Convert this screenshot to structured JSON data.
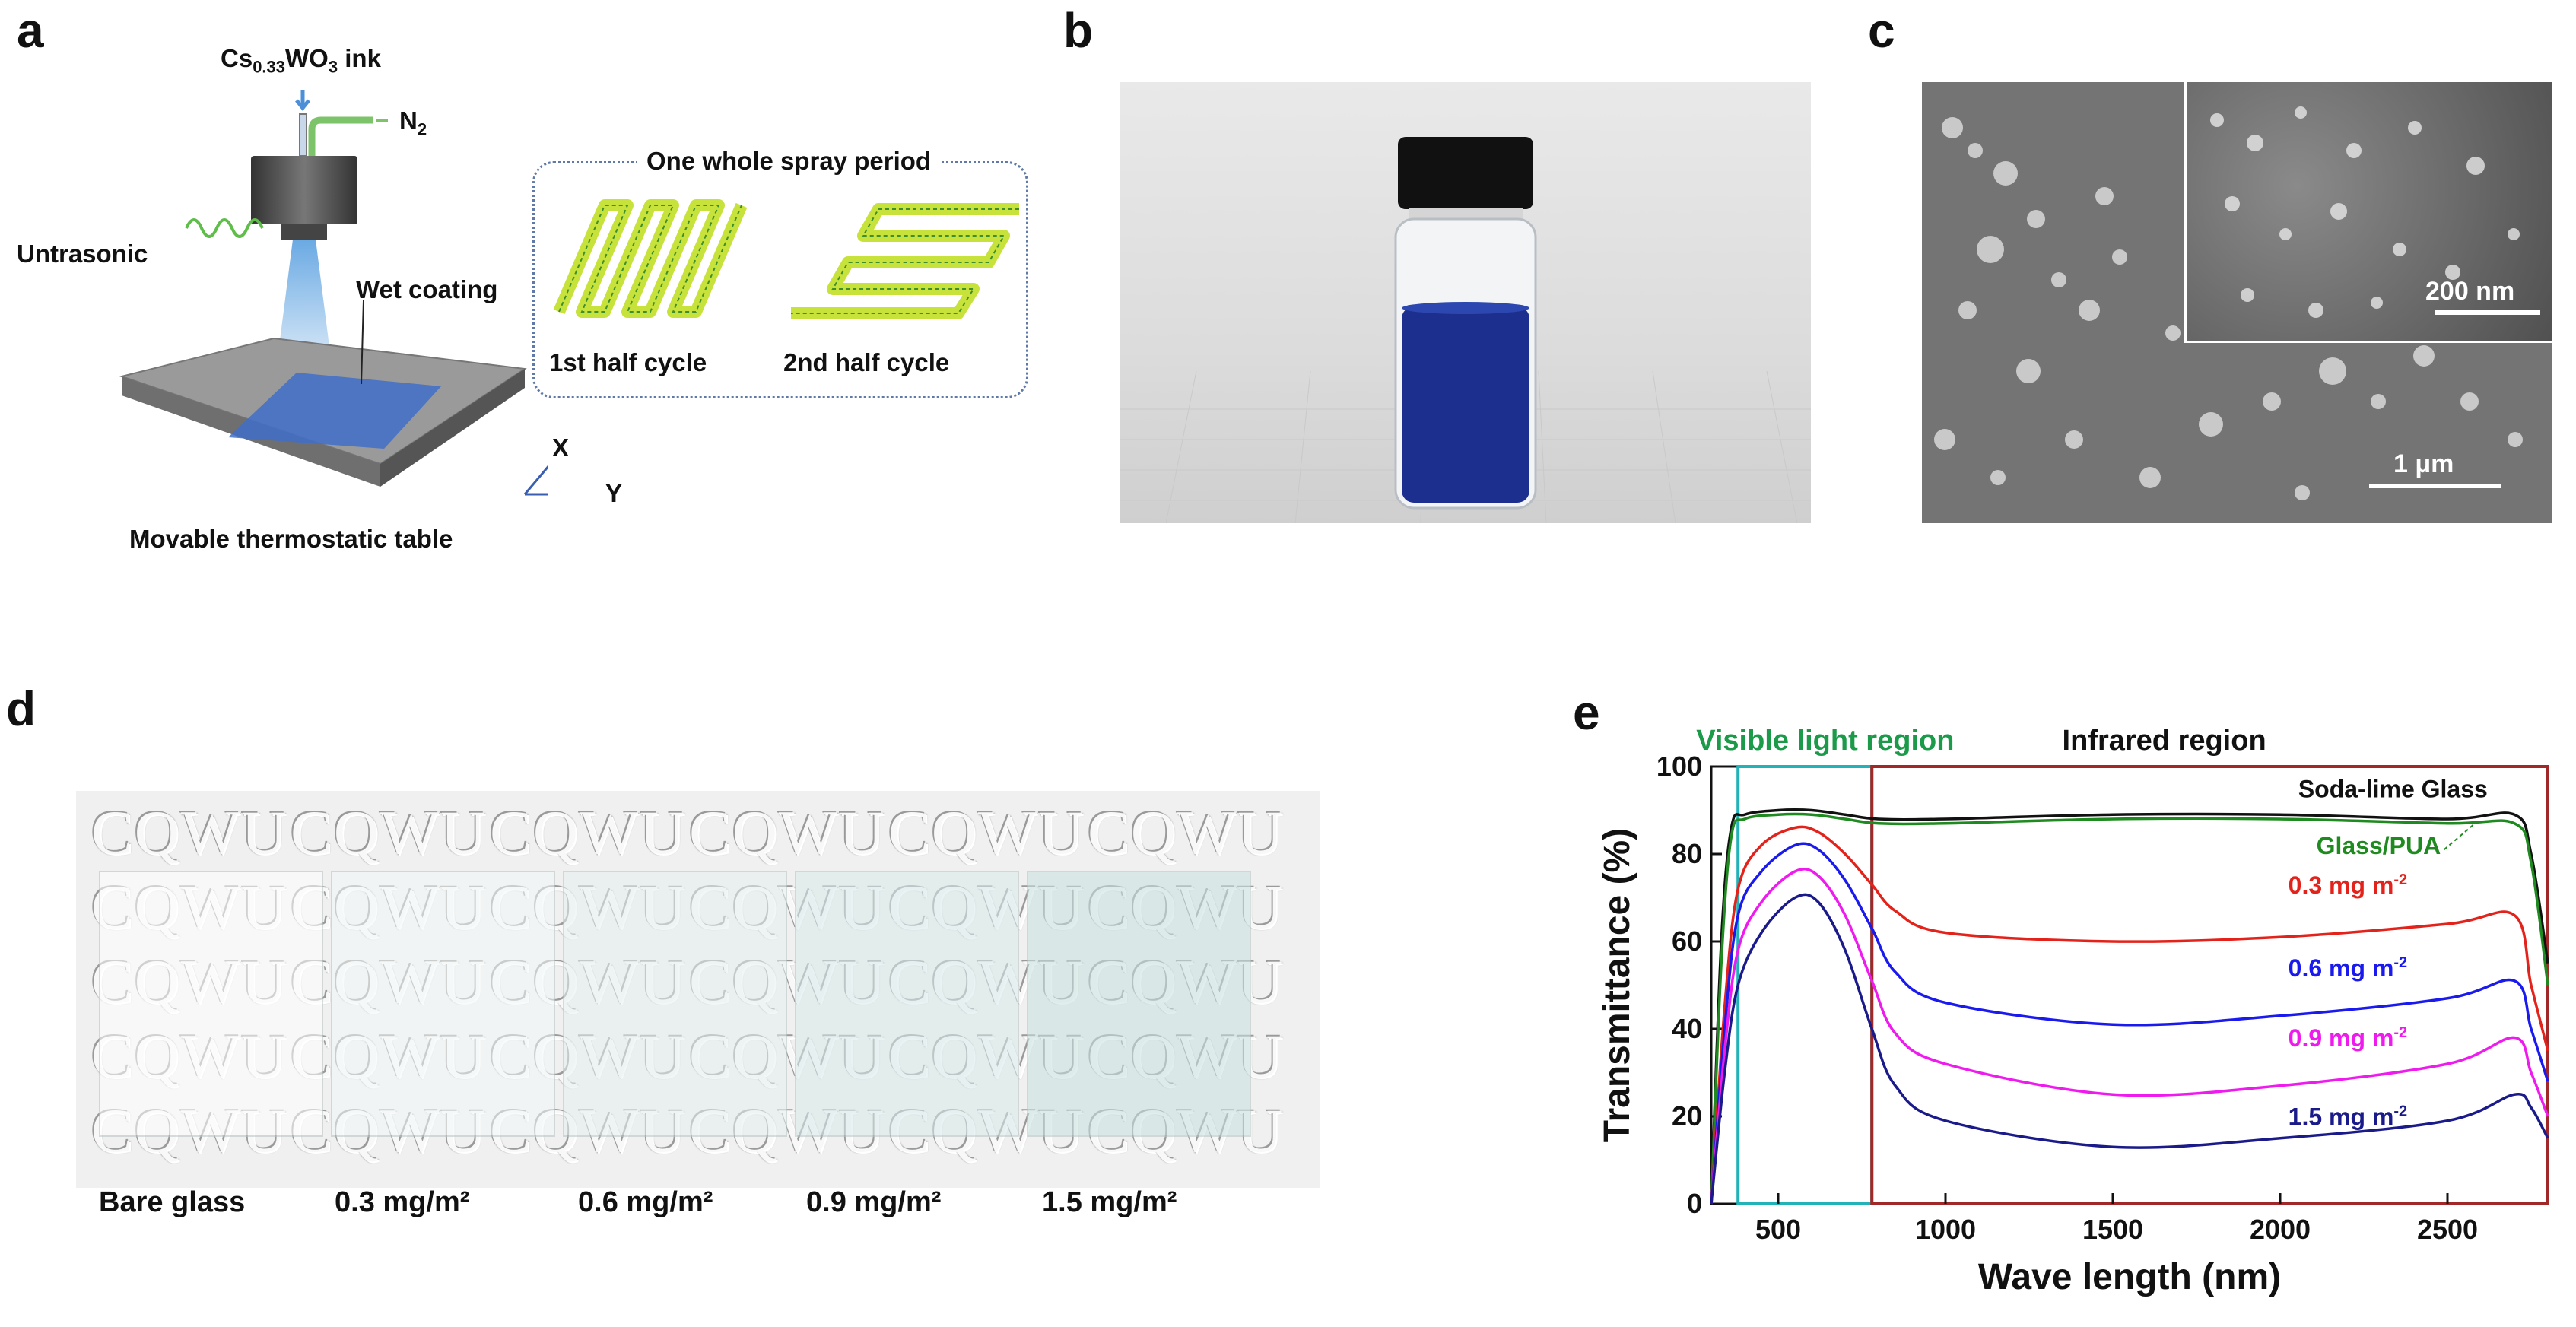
{
  "panels": {
    "a": "a",
    "b": "b",
    "c": "c",
    "d": "d",
    "e": "e"
  },
  "panel_a": {
    "ink_label": "Cs",
    "ink_sub": "0.33",
    "ink_mid": "WO",
    "ink_sub2": "3",
    "ink_tail": " ink",
    "gas_label": "N",
    "gas_sub": "2",
    "ultrasonic": "Untrasonic",
    "wet_coating": "Wet coating",
    "table_label": "Movable thermostatic table",
    "axis_x": "X",
    "axis_y": "Y",
    "spray_period_title": "One whole spray period",
    "half1": "1st half cycle",
    "half2": "2nd half cycle"
  },
  "panel_c": {
    "inset_scale": "200 nm",
    "main_scale": "1 μm"
  },
  "panel_d": {
    "watermark": "CQWU",
    "samples": [
      "Bare glass",
      "0.3 mg/m²",
      "0.6 mg/m²",
      "0.9 mg/m²",
      "1.5 mg/m²"
    ],
    "tints": [
      "#ffffff",
      "#f3f8f8",
      "#e6f1f1",
      "#d9ebea",
      "#c8e2e0"
    ]
  },
  "chart_data": {
    "type": "line",
    "title": "",
    "xlabel": "Wave length (nm)",
    "ylabel": "Transmittance (%)",
    "xlim": [
      300,
      2800
    ],
    "ylim": [
      0,
      100
    ],
    "xticks": [
      500,
      1000,
      1500,
      2000,
      2500
    ],
    "yticks": [
      0,
      20,
      40,
      60,
      80,
      100
    ],
    "regions": [
      {
        "name": "Visible light region",
        "range": [
          380,
          780
        ],
        "color": "#1b9a4a",
        "frame": "#22b2b7"
      },
      {
        "name": "Infrared region",
        "range": [
          780,
          2800
        ],
        "color": "#111111",
        "frame": "#a02828"
      }
    ],
    "series": [
      {
        "name": "Soda-lime Glass",
        "color": "#111111",
        "x": [
          300,
          330,
          360,
          400,
          500,
          600,
          700,
          800,
          1000,
          1500,
          2000,
          2500,
          2700,
          2750,
          2800
        ],
        "y": [
          0,
          60,
          86,
          89,
          90,
          90,
          89,
          88,
          88,
          89,
          89,
          88,
          89,
          80,
          55
        ]
      },
      {
        "name": "Glass/PUA",
        "color": "#1f8a1f",
        "x": [
          300,
          330,
          360,
          400,
          500,
          600,
          700,
          800,
          1000,
          1500,
          2000,
          2500,
          2700,
          2750,
          2800
        ],
        "y": [
          0,
          55,
          84,
          88,
          89,
          89,
          88,
          87,
          87,
          88,
          88,
          87,
          87,
          78,
          50
        ]
      },
      {
        "name": "0.3 mg m⁻²",
        "label_main": "0.3 mg m",
        "label_sup": "-2",
        "color": "#e3231b",
        "x": [
          300,
          340,
          380,
          450,
          550,
          620,
          700,
          780,
          850,
          1000,
          1500,
          2000,
          2500,
          2700,
          2750,
          2800
        ],
        "y": [
          0,
          45,
          72,
          82,
          86,
          85,
          80,
          73,
          67,
          62,
          60,
          61,
          64,
          66,
          50,
          35
        ]
      },
      {
        "name": "0.6 mg m⁻²",
        "label_main": "0.6 mg m",
        "label_sup": "-2",
        "color": "#1a1aee",
        "x": [
          300,
          340,
          380,
          450,
          550,
          620,
          700,
          780,
          850,
          1000,
          1500,
          2000,
          2500,
          2700,
          2750,
          2800
        ],
        "y": [
          0,
          40,
          66,
          76,
          82,
          81,
          74,
          63,
          53,
          46,
          41,
          43,
          47,
          51,
          40,
          28
        ]
      },
      {
        "name": "0.9 mg m⁻²",
        "label_main": "0.9 mg m",
        "label_sup": "-2",
        "color": "#ee1aee",
        "x": [
          300,
          340,
          380,
          450,
          550,
          620,
          700,
          780,
          850,
          1000,
          1500,
          2000,
          2500,
          2700,
          2750,
          2800
        ],
        "y": [
          0,
          35,
          58,
          69,
          76,
          75,
          66,
          51,
          39,
          32,
          25,
          27,
          32,
          38,
          30,
          20
        ]
      },
      {
        "name": "1.5 mg m⁻²",
        "label_main": "1.5 mg m",
        "label_sup": "-2",
        "color": "#1a1a8a",
        "x": [
          300,
          340,
          380,
          450,
          550,
          620,
          700,
          780,
          850,
          1000,
          1500,
          2000,
          2500,
          2700,
          2750,
          2800
        ],
        "y": [
          0,
          30,
          50,
          62,
          70,
          69,
          58,
          40,
          27,
          19,
          13,
          15,
          19,
          25,
          22,
          15
        ]
      }
    ]
  }
}
